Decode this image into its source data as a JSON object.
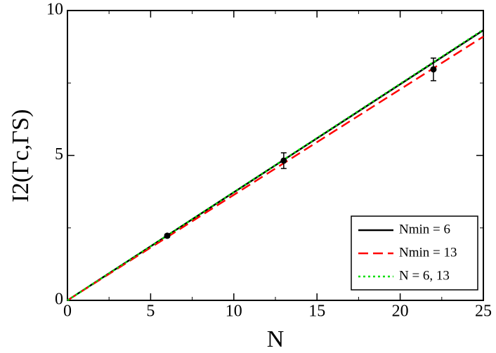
{
  "chart_data": {
    "type": "line",
    "xlabel": "N",
    "ylabel": "I2(Γc,ΓS)",
    "xlim": [
      0,
      25
    ],
    "ylim": [
      0,
      10
    ],
    "xticks": [
      0,
      5,
      10,
      15,
      20,
      25
    ],
    "yticks": [
      0,
      5,
      10
    ],
    "legend": "lower right",
    "series": [
      {
        "name": "Nmin = 6",
        "color": "#000000",
        "dash": "solid",
        "x": [
          0,
          25
        ],
        "values": [
          0,
          9.32
        ]
      },
      {
        "name": "Nmin = 13",
        "color": "#ff0000",
        "dash": "dashed",
        "x": [
          0,
          25
        ],
        "values": [
          0,
          9.1
        ]
      },
      {
        "name": "N = 6, 13",
        "color": "#00dd00",
        "dash": "dotted",
        "x": [
          0,
          25
        ],
        "values": [
          0,
          9.34
        ]
      }
    ],
    "points": {
      "color": "#000000",
      "x": [
        6,
        13,
        22
      ],
      "values": [
        2.23,
        4.82,
        7.97
      ],
      "errors": [
        0.05,
        0.27,
        0.39
      ]
    }
  }
}
